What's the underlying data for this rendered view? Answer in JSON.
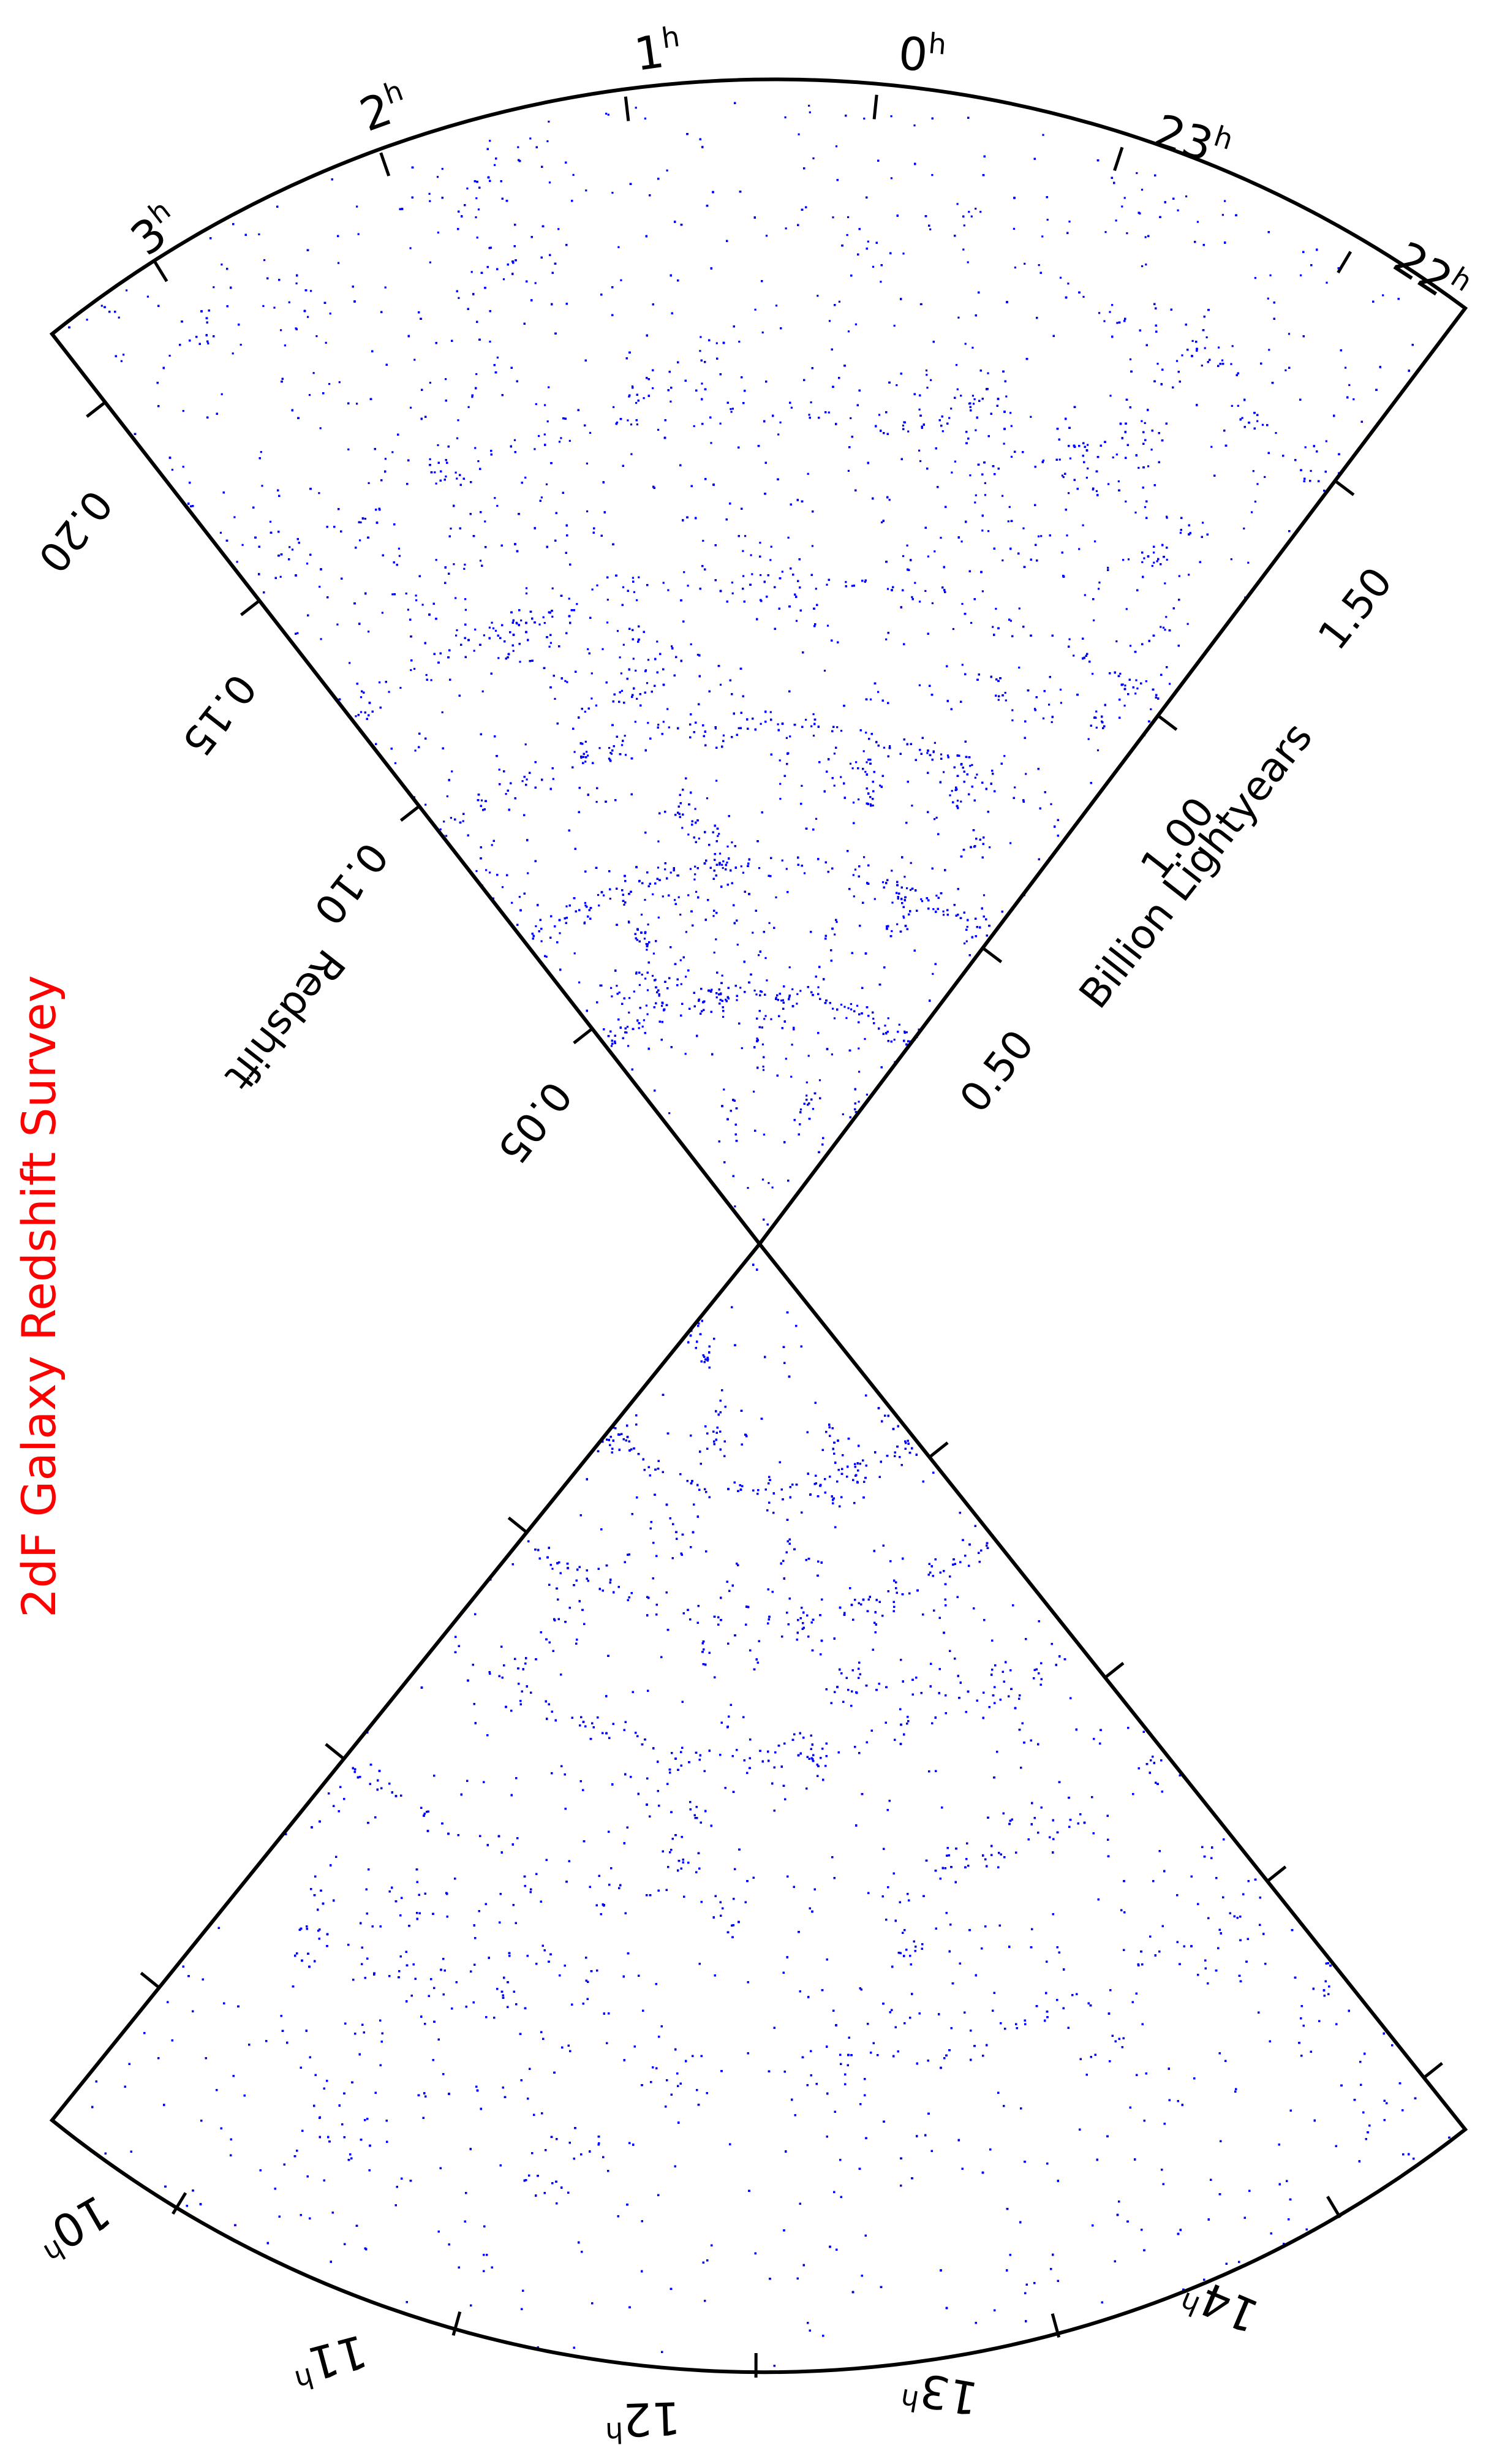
{
  "chart_data": {
    "type": "scatter",
    "title": "2dF Galaxy Redshift Survey",
    "color": "#0000ff",
    "title_color": "#ff0000",
    "redshift_axis": {
      "label": "Redshift",
      "ticks": [
        "0.05",
        "0.10",
        "0.15",
        "0.20"
      ],
      "range": [
        0,
        0.22
      ]
    },
    "distance_axis": {
      "label": "Billion Lightyears",
      "ticks": [
        "0.50",
        "1.00",
        "1.50"
      ]
    },
    "north_slice": {
      "ra_ticks": [
        {
          "h": "3",
          "sup": "h"
        },
        {
          "h": "2",
          "sup": "h"
        },
        {
          "h": "1",
          "sup": "h"
        },
        {
          "h": "0",
          "sup": "h"
        },
        {
          "h": "23",
          "sup": "h"
        },
        {
          "h": "22",
          "sup": "h"
        }
      ]
    },
    "south_slice": {
      "ra_ticks": [
        {
          "h": "10",
          "sup": "h"
        },
        {
          "h": "11",
          "sup": "h"
        },
        {
          "h": "12",
          "sup": "h"
        },
        {
          "h": "13",
          "sup": "h"
        },
        {
          "h": "14",
          "sup": "h"
        }
      ]
    },
    "orientation": "two opposing wedges meeting at the observer",
    "galaxy_count_rendering": "dense point cloud"
  }
}
